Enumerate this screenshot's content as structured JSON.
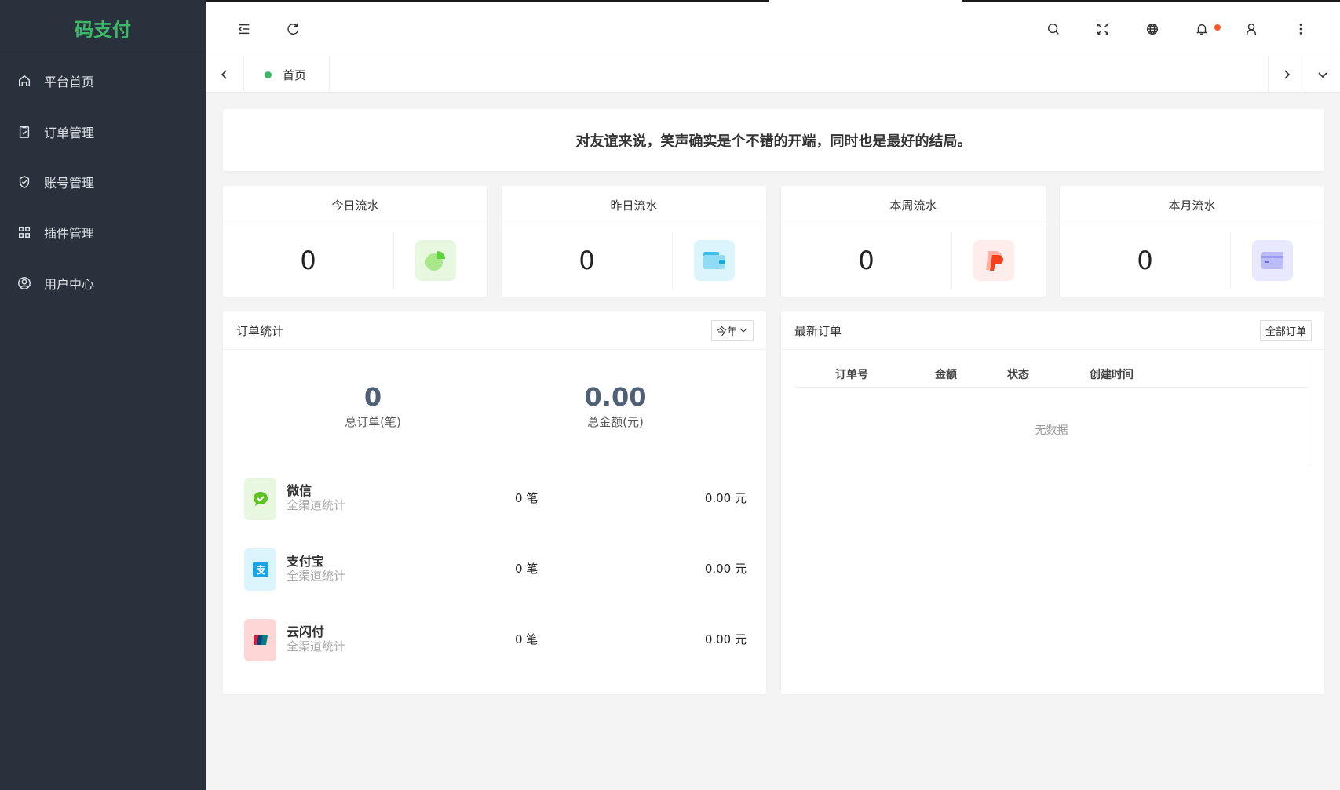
{
  "app": {
    "logo": "码支付"
  },
  "sidebar": {
    "items": [
      {
        "label": "平台首页",
        "icon": "home-icon"
      },
      {
        "label": "订单管理",
        "icon": "clipboard-check-icon"
      },
      {
        "label": "账号管理",
        "icon": "shield-check-icon"
      },
      {
        "label": "插件管理",
        "icon": "grid-icon"
      },
      {
        "label": "用户中心",
        "icon": "user-circle-icon"
      }
    ]
  },
  "header": {
    "icons": [
      "menu-fold-icon",
      "refresh-icon",
      "search-icon",
      "fullscreen-icon",
      "globe-icon",
      "bell-icon",
      "user-icon",
      "more-vertical-icon"
    ],
    "notify_dot_color": "#ff5722"
  },
  "tabs": {
    "items": [
      {
        "label": "首页",
        "active": true
      }
    ]
  },
  "notice": {
    "text": "对友谊来说，笑声确实是个不错的开端，同时也是最好的结局。"
  },
  "stats": [
    {
      "title": "今日流水",
      "value": "0",
      "icon": "pie-chart-icon",
      "color": "#e8f8e0"
    },
    {
      "title": "昨日流水",
      "value": "0",
      "icon": "wallet-icon",
      "color": "#dcf4fc"
    },
    {
      "title": "本周流水",
      "value": "0",
      "icon": "paypal-icon",
      "color": "#ffeceb"
    },
    {
      "title": "本月流水",
      "value": "0",
      "icon": "card-icon",
      "color": "#e8e8fe"
    }
  ],
  "order_stats": {
    "title": "订单统计",
    "range": "今年",
    "total_orders": "0",
    "total_orders_label": "总订单(笔)",
    "total_amount": "0.00",
    "total_amount_label": "总金额(元)",
    "channels": [
      {
        "name": "微信",
        "sub": "全渠道统计",
        "count": "0 笔",
        "amount": "0.00 元",
        "icon": "wechat-icon"
      },
      {
        "name": "支付宝",
        "sub": "全渠道统计",
        "count": "0 笔",
        "amount": "0.00 元",
        "icon": "alipay-icon"
      },
      {
        "name": "云闪付",
        "sub": "全渠道统计",
        "count": "0 笔",
        "amount": "0.00 元",
        "icon": "unionpay-icon"
      }
    ]
  },
  "latest_orders": {
    "title": "最新订单",
    "all_button": "全部订单",
    "columns": [
      "订单号",
      "金额",
      "状态",
      "创建时间"
    ],
    "empty": "无数据"
  }
}
